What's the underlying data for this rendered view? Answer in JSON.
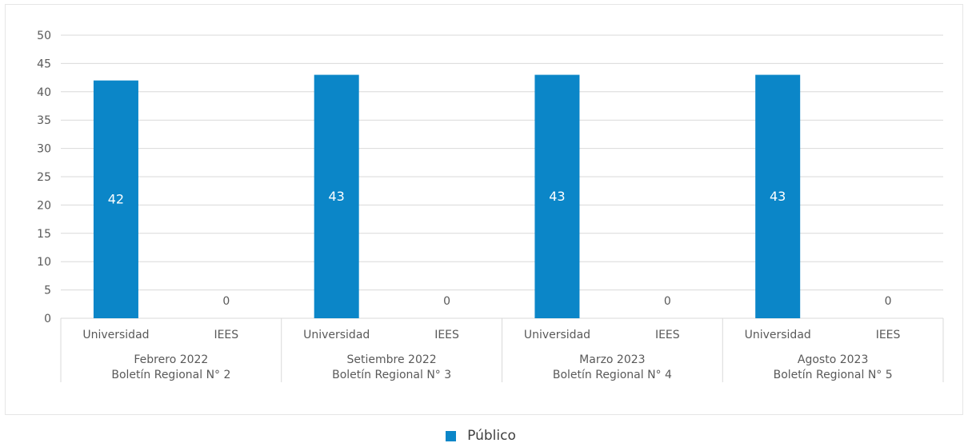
{
  "chart_data": {
    "type": "bar",
    "title": "",
    "xlabel": "",
    "ylabel": "",
    "ylim": [
      0,
      50
    ],
    "yticks": [
      "0",
      "5",
      "10",
      "15",
      "20",
      "25",
      "30",
      "35",
      "40",
      "45",
      "50"
    ],
    "grid": true,
    "legend_position": "bottom",
    "groups": [
      {
        "line1": "Febrero 2022",
        "line2": "Boletín Regional N° 2",
        "categories": [
          "Universidad",
          "IEES"
        ]
      },
      {
        "line1": "Setiembre 2022",
        "line2": "Boletín Regional N° 3",
        "categories": [
          "Universidad",
          "IEES"
        ]
      },
      {
        "line1": "Marzo 2023",
        "line2": "Boletín Regional N° 4",
        "categories": [
          "Universidad",
          "IEES"
        ]
      },
      {
        "line1": "Agosto 2023",
        "line2": "Boletín Regional N° 5",
        "categories": [
          "Universidad",
          "IEES"
        ]
      }
    ],
    "series": [
      {
        "name": "Público",
        "color": "#0b86c8",
        "values": [
          42,
          0,
          43,
          0,
          43,
          0,
          43,
          0
        ],
        "data_labels": [
          "42",
          "0",
          "43",
          "0",
          "43",
          "0",
          "43",
          "0"
        ]
      }
    ]
  }
}
